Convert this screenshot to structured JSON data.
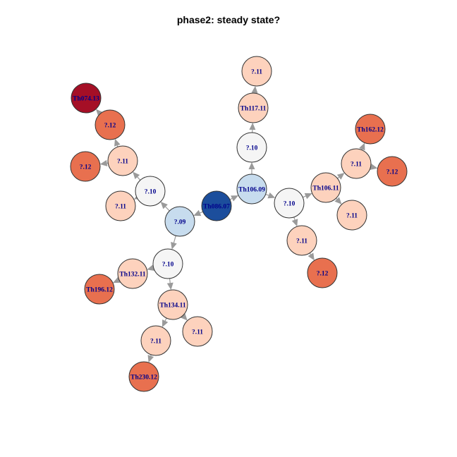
{
  "title": "phase2: steady state?",
  "palette": {
    "dark_red": "#a50f26",
    "red": "#e8704f",
    "light": "#fdd2bd",
    "white": "#f5f5f5",
    "light_blue": "#c7dcee",
    "dark_blue": "#1c4e9c",
    "edge": "#9a9a9a",
    "label": "#00008b"
  },
  "nodes": [
    {
      "id": "n1",
      "label": "?.11",
      "color": "light"
    },
    {
      "id": "n2",
      "label": "Th117.11",
      "color": "light"
    },
    {
      "id": "n3",
      "label": "?.10",
      "color": "white"
    },
    {
      "id": "n4",
      "label": "Th106.09",
      "color": "light_blue"
    },
    {
      "id": "n5",
      "label": "Th086.07",
      "color": "dark_blue"
    },
    {
      "id": "n6",
      "label": "?.10",
      "color": "white"
    },
    {
      "id": "n7",
      "label": "?.11",
      "color": "light"
    },
    {
      "id": "n8",
      "label": "?.12",
      "color": "red"
    },
    {
      "id": "n9",
      "label": "Th106.11",
      "color": "light"
    },
    {
      "id": "n10",
      "label": "?.11",
      "color": "light"
    },
    {
      "id": "n11",
      "label": "Th162.12",
      "color": "red"
    },
    {
      "id": "n12",
      "label": "?.12",
      "color": "red"
    },
    {
      "id": "n13",
      "label": "?.11",
      "color": "light"
    },
    {
      "id": "n14",
      "label": "Th074.13",
      "color": "dark_red"
    },
    {
      "id": "n15",
      "label": "?.12",
      "color": "red"
    },
    {
      "id": "n16",
      "label": "?.11",
      "color": "light"
    },
    {
      "id": "n17",
      "label": "?.12",
      "color": "red"
    },
    {
      "id": "n18",
      "label": "?.10",
      "color": "white"
    },
    {
      "id": "n19",
      "label": "?.11",
      "color": "light"
    },
    {
      "id": "n20",
      "label": "?.09",
      "color": "light_blue"
    },
    {
      "id": "n21",
      "label": "?.10",
      "color": "white"
    },
    {
      "id": "n22",
      "label": "Th132.11",
      "color": "light"
    },
    {
      "id": "n23",
      "label": "Th196.12",
      "color": "red"
    },
    {
      "id": "n24",
      "label": "Th134.11",
      "color": "light"
    },
    {
      "id": "n25",
      "label": "?.11",
      "color": "light"
    },
    {
      "id": "n26",
      "label": "?.11",
      "color": "light"
    },
    {
      "id": "n27",
      "label": "Th230.12",
      "color": "red"
    }
  ],
  "edges": [
    {
      "from": "n2",
      "to": "n1"
    },
    {
      "from": "n3",
      "to": "n2"
    },
    {
      "from": "n4",
      "to": "n3"
    },
    {
      "from": "n5",
      "to": "n4"
    },
    {
      "from": "n4",
      "to": "n6"
    },
    {
      "from": "n6",
      "to": "n7"
    },
    {
      "from": "n7",
      "to": "n8"
    },
    {
      "from": "n6",
      "to": "n9"
    },
    {
      "from": "n9",
      "to": "n10"
    },
    {
      "from": "n9",
      "to": "n13"
    },
    {
      "from": "n13",
      "to": "n11"
    },
    {
      "from": "n13",
      "to": "n12"
    },
    {
      "from": "n5",
      "to": "n20"
    },
    {
      "from": "n20",
      "to": "n18"
    },
    {
      "from": "n18",
      "to": "n19"
    },
    {
      "from": "n18",
      "to": "n16"
    },
    {
      "from": "n16",
      "to": "n15"
    },
    {
      "from": "n15",
      "to": "n14"
    },
    {
      "from": "n16",
      "to": "n17"
    },
    {
      "from": "n20",
      "to": "n21"
    },
    {
      "from": "n21",
      "to": "n22"
    },
    {
      "from": "n22",
      "to": "n23"
    },
    {
      "from": "n21",
      "to": "n24"
    },
    {
      "from": "n24",
      "to": "n25"
    },
    {
      "from": "n24",
      "to": "n26"
    },
    {
      "from": "n26",
      "to": "n27"
    }
  ]
}
